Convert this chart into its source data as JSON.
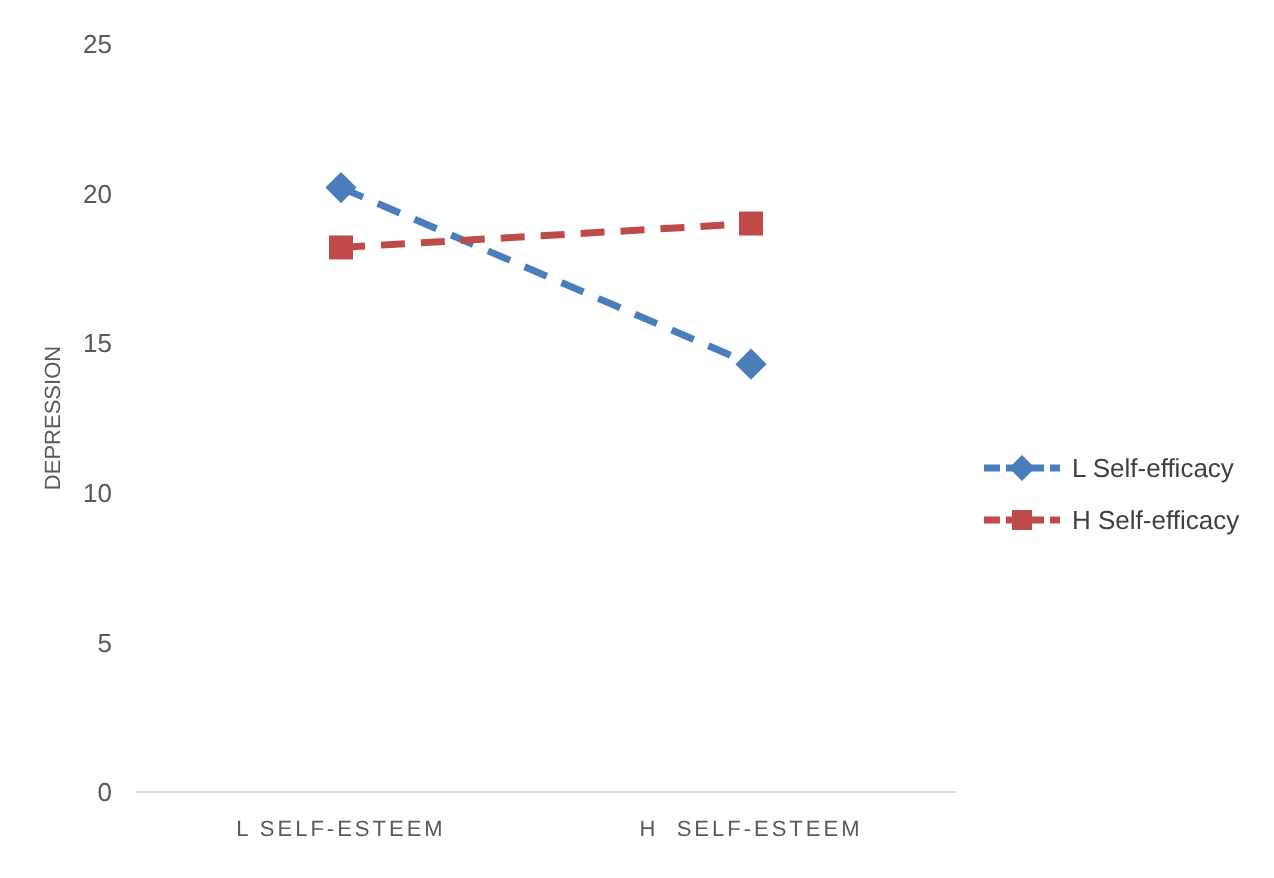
{
  "chart_data": {
    "type": "line",
    "ylabel": "DEPRESSION",
    "categories": [
      "L SELF-ESTEEM",
      "H  SELF-ESTEEM"
    ],
    "series": [
      {
        "name": "L Self-efficacy",
        "color": "#4a7ebb",
        "values": [
          20.2,
          14.3
        ],
        "marker": "diamond",
        "line_style": "dashed"
      },
      {
        "name": "H Self-efficacy",
        "color": "#be4b48",
        "values": [
          18.2,
          19.0
        ],
        "marker": "square",
        "line_style": "dashed"
      }
    ],
    "ylim": [
      0,
      25
    ],
    "yticks": [
      0,
      5,
      10,
      15,
      20,
      25
    ],
    "grid": false,
    "legend": "right"
  }
}
